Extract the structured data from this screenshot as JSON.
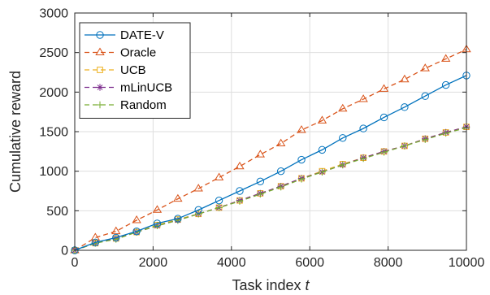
{
  "chart_data": {
    "type": "line",
    "xlabel": "Task index",
    "xlabel_var": "t",
    "ylabel": "Cumulative reward",
    "xlim": [
      0,
      10000
    ],
    "ylim": [
      0,
      3000
    ],
    "xticks": [
      0,
      2000,
      4000,
      6000,
      8000,
      10000
    ],
    "yticks": [
      0,
      500,
      1000,
      1500,
      2000,
      2500,
      3000
    ],
    "grid": true,
    "legend_position": "top-left",
    "x": [
      0,
      526,
      1053,
      1579,
      2105,
      2632,
      3158,
      3684,
      4211,
      4737,
      5263,
      5789,
      6316,
      6842,
      7368,
      7895,
      8421,
      8947,
      9474,
      10000
    ],
    "series": [
      {
        "name": "DATE-V",
        "color": "#0072BD",
        "linestyle": "solid",
        "marker": "circle",
        "values": [
          0,
          100,
          160,
          240,
          340,
          400,
          510,
          630,
          750,
          870,
          1000,
          1145,
          1270,
          1420,
          1540,
          1680,
          1810,
          1950,
          2090,
          2210
        ]
      },
      {
        "name": "Oracle",
        "color": "#D95319",
        "linestyle": "dashed",
        "marker": "triangle",
        "values": [
          0,
          160,
          240,
          380,
          510,
          650,
          780,
          920,
          1060,
          1210,
          1350,
          1520,
          1640,
          1790,
          1910,
          2040,
          2160,
          2300,
          2420,
          2540
        ]
      },
      {
        "name": "UCB",
        "color": "#EDB120",
        "linestyle": "dashed",
        "marker": "square",
        "values": [
          0,
          90,
          150,
          230,
          320,
          390,
          460,
          540,
          630,
          720,
          810,
          910,
          1000,
          1090,
          1170,
          1250,
          1320,
          1410,
          1490,
          1560
        ]
      },
      {
        "name": "mLinUCB",
        "color": "#7E2F8E",
        "linestyle": "dashed",
        "marker": "asterisk",
        "values": [
          0,
          90,
          150,
          230,
          310,
          380,
          460,
          540,
          630,
          720,
          810,
          910,
          990,
          1080,
          1170,
          1250,
          1320,
          1410,
          1490,
          1560
        ]
      },
      {
        "name": "Random",
        "color": "#77AC30",
        "linestyle": "dashed",
        "marker": "plus",
        "values": [
          0,
          90,
          140,
          230,
          310,
          380,
          460,
          540,
          620,
          710,
          800,
          900,
          990,
          1080,
          1160,
          1240,
          1320,
          1400,
          1480,
          1550
        ]
      }
    ]
  }
}
